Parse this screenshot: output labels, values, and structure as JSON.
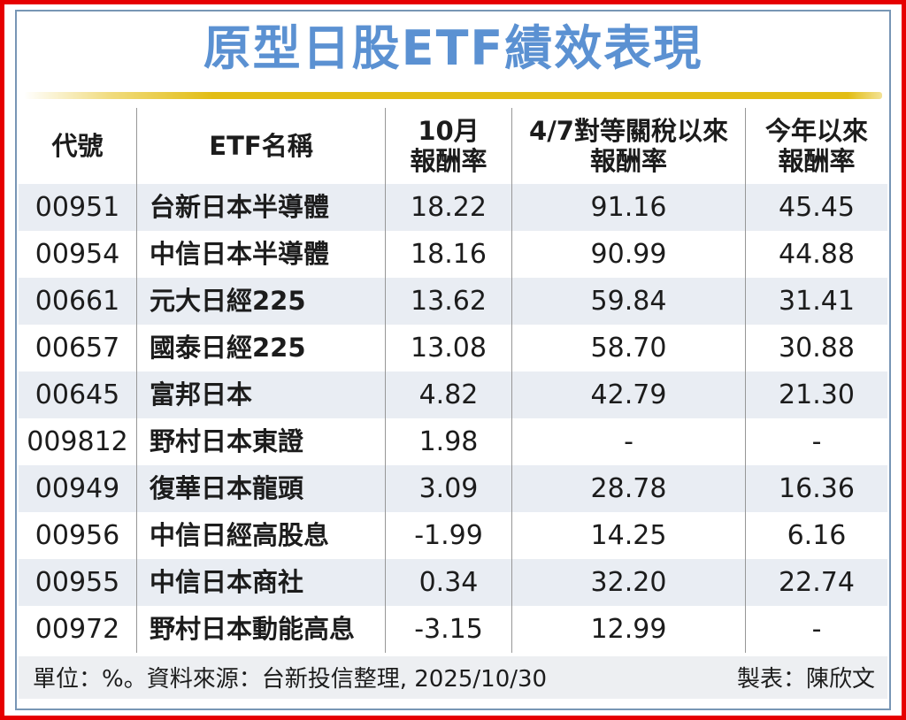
{
  "title": "原型日股ETF績效表現",
  "table": {
    "headers": [
      {
        "line1": "代號"
      },
      {
        "line1": "ETF名稱"
      },
      {
        "line1": "10月",
        "line2": "報酬率"
      },
      {
        "line1": "4/7對等關稅以來",
        "line2": "報酬率"
      },
      {
        "line1": "今年以來",
        "line2": "報酬率"
      }
    ],
    "rows": [
      {
        "code": "00951",
        "name": "台新日本半導體",
        "oct_return": "18.22",
        "since_tariff_return": "91.16",
        "ytd_return": "45.45"
      },
      {
        "code": "00954",
        "name": "中信日本半導體",
        "oct_return": "18.16",
        "since_tariff_return": "90.99",
        "ytd_return": "44.88"
      },
      {
        "code": "00661",
        "name": "元大日經225",
        "oct_return": "13.62",
        "since_tariff_return": "59.84",
        "ytd_return": "31.41"
      },
      {
        "code": "00657",
        "name": "國泰日經225",
        "oct_return": "13.08",
        "since_tariff_return": "58.70",
        "ytd_return": "30.88"
      },
      {
        "code": "00645",
        "name": "富邦日本",
        "oct_return": "4.82",
        "since_tariff_return": "42.79",
        "ytd_return": "21.30"
      },
      {
        "code": "009812",
        "name": "野村日本東證",
        "oct_return": "1.98",
        "since_tariff_return": "-",
        "ytd_return": "-"
      },
      {
        "code": "00949",
        "name": "復華日本龍頭",
        "oct_return": "3.09",
        "since_tariff_return": "28.78",
        "ytd_return": "16.36"
      },
      {
        "code": "00956",
        "name": "中信日經高股息",
        "oct_return": "-1.99",
        "since_tariff_return": "14.25",
        "ytd_return": "6.16"
      },
      {
        "code": "00955",
        "name": "中信日本商社",
        "oct_return": "0.34",
        "since_tariff_return": "32.20",
        "ytd_return": "22.74"
      },
      {
        "code": "00972",
        "name": "野村日本動能高息",
        "oct_return": "-3.15",
        "since_tariff_return": "12.99",
        "ytd_return": "-"
      }
    ]
  },
  "footer": {
    "left": "單位：%。資料來源：台新投信整理, 2025/10/30",
    "right": "製表：陳欣文"
  },
  "colors": {
    "title_blue": "#5b91d2",
    "gold_rule": "#e2bd14",
    "row_stripe": "#e9edf3",
    "footer_bg": "#edeff2",
    "outer_border_red": "#e60000",
    "inner_border_blue": "#7896b5",
    "divider_gray": "#979797"
  },
  "chart_data": {
    "type": "table",
    "title": "原型日股ETF績效表現",
    "unit": "%",
    "columns": [
      "代號",
      "ETF名稱",
      "10月報酬率",
      "4/7對等關稅以來報酬率",
      "今年以來報酬率"
    ],
    "rows": [
      [
        "00951",
        "台新日本半導體",
        18.22,
        91.16,
        45.45
      ],
      [
        "00954",
        "中信日本半導體",
        18.16,
        90.99,
        44.88
      ],
      [
        "00661",
        "元大日經225",
        13.62,
        59.84,
        31.41
      ],
      [
        "00657",
        "國泰日經225",
        13.08,
        58.7,
        30.88
      ],
      [
        "00645",
        "富邦日本",
        4.82,
        42.79,
        21.3
      ],
      [
        "009812",
        "野村日本東證",
        1.98,
        null,
        null
      ],
      [
        "00949",
        "復華日本龍頭",
        3.09,
        28.78,
        16.36
      ],
      [
        "00956",
        "中信日經高股息",
        -1.99,
        14.25,
        6.16
      ],
      [
        "00955",
        "中信日本商社",
        0.34,
        32.2,
        22.74
      ],
      [
        "00972",
        "野村日本動能高息",
        -3.15,
        12.99,
        null
      ]
    ]
  }
}
